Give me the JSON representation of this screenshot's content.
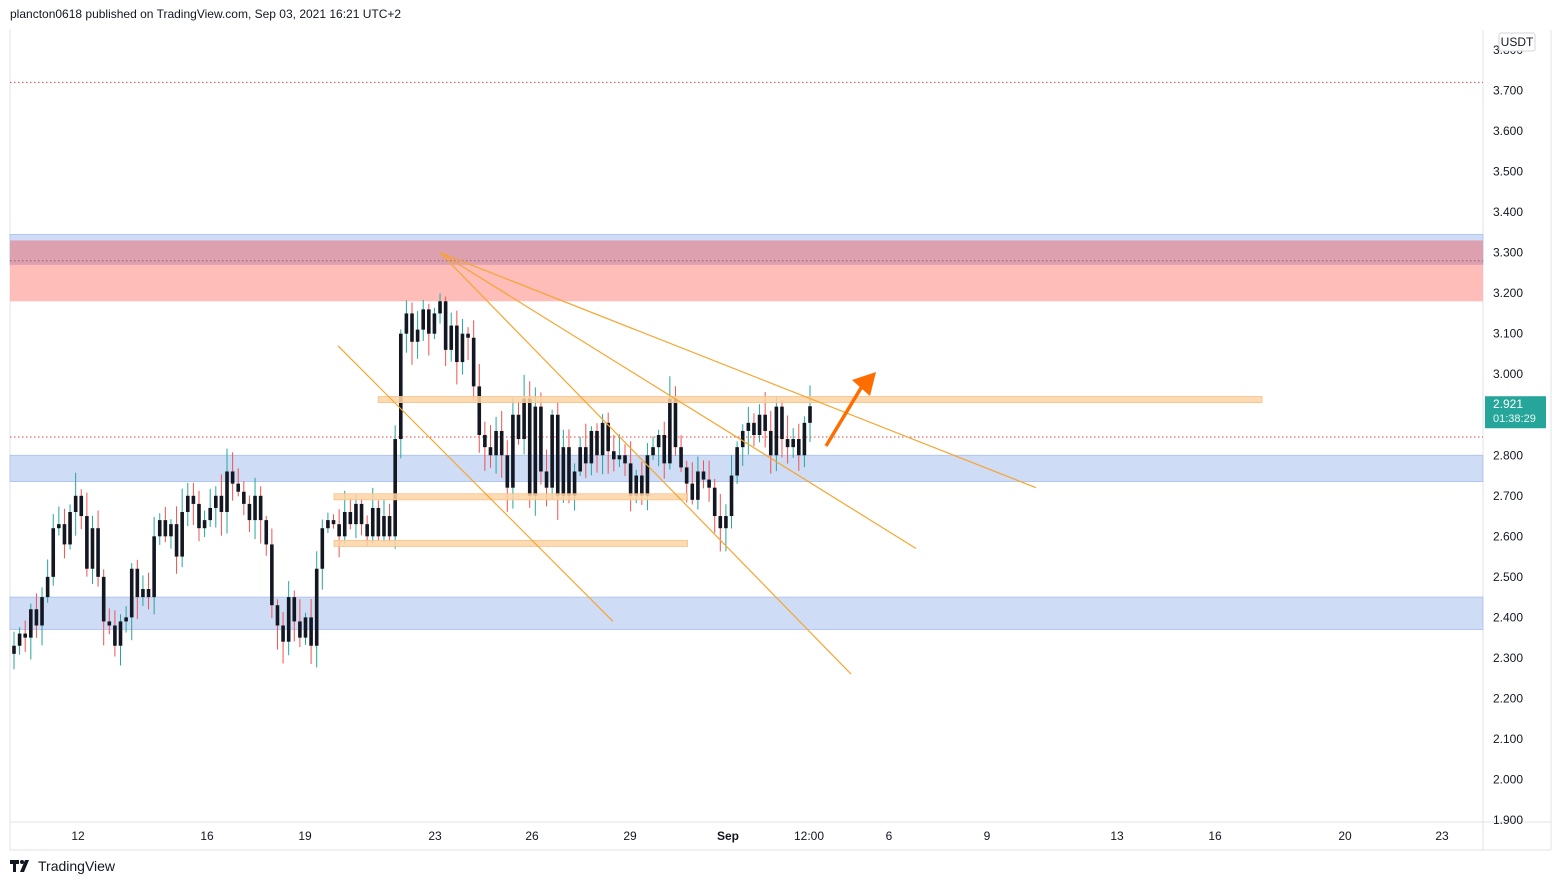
{
  "header": {
    "published_text": "plancton0618 published on TradingView.com, Sep 03, 2021 16:21 UTC+2"
  },
  "footer": {
    "brand": "TradingView"
  },
  "colors": {
    "up": "#26a69a",
    "down": "#ef5350",
    "wick": "#787b86",
    "body": "#131722",
    "support_zone": "#c5d6f5",
    "resistance_zone": "#ffb6b2",
    "orange_line": "#f7a531",
    "orange_zone": "#fbd3a5",
    "arrow": "#ff6d00",
    "price_label": "#26a69a"
  },
  "chart_data": {
    "type": "candlestick",
    "currency_label": "USDT",
    "last_price": "2.921",
    "countdown": "01:38:29",
    "y_ticks": [
      "3.800",
      "3.700",
      "3.600",
      "3.500",
      "3.400",
      "3.300",
      "3.200",
      "3.100",
      "3.000",
      "2.900",
      "2.800",
      "2.700",
      "2.600",
      "2.500",
      "2.400",
      "2.300",
      "2.200",
      "2.100",
      "2.000",
      "1.900"
    ],
    "ylim": [
      1.9,
      3.8
    ],
    "x_ticks": [
      {
        "label": "12",
        "bold": false
      },
      {
        "label": "16",
        "bold": false
      },
      {
        "label": "19",
        "bold": false
      },
      {
        "label": "23",
        "bold": false
      },
      {
        "label": "26",
        "bold": false
      },
      {
        "label": "29",
        "bold": false
      },
      {
        "label": "Sep",
        "bold": true
      },
      {
        "label": "12:00",
        "bold": false
      },
      {
        "label": "6",
        "bold": false
      },
      {
        "label": "9",
        "bold": false
      },
      {
        "label": "13",
        "bold": false
      },
      {
        "label": "16",
        "bold": false
      },
      {
        "label": "20",
        "bold": false
      },
      {
        "label": "23",
        "bold": false
      }
    ],
    "horizontal_levels": [
      3.72,
      2.845
    ],
    "zones": [
      {
        "kind": "resistance-blue",
        "from": 3.27,
        "to": 3.345
      },
      {
        "kind": "resistance-red",
        "from": 3.18,
        "to": 3.33
      },
      {
        "kind": "support-blue",
        "from": 2.735,
        "to": 2.8
      },
      {
        "kind": "support-blue",
        "from": 2.37,
        "to": 2.45
      }
    ],
    "closes": [
      2.33,
      2.36,
      2.35,
      2.42,
      2.38,
      2.45,
      2.5,
      2.62,
      2.63,
      2.58,
      2.66,
      2.7,
      2.65,
      2.52,
      2.62,
      2.5,
      2.39,
      2.38,
      2.33,
      2.39,
      2.4,
      2.52,
      2.45,
      2.47,
      2.45,
      2.6,
      2.64,
      2.6,
      2.63,
      2.55,
      2.66,
      2.7,
      2.68,
      2.62,
      2.64,
      2.67,
      2.7,
      2.66,
      2.76,
      2.73,
      2.71,
      2.68,
      2.64,
      2.7,
      2.64,
      2.58,
      2.43,
      2.38,
      2.34,
      2.45,
      2.39,
      2.35,
      2.4,
      2.33,
      2.52,
      2.62,
      2.64,
      2.63,
      2.6,
      2.66,
      2.63,
      2.68,
      2.63,
      2.6,
      2.67,
      2.6,
      2.65,
      2.6,
      2.84,
      3.1,
      3.15,
      3.08,
      3.11,
      3.16,
      3.1,
      3.15,
      3.18,
      3.06,
      3.12,
      3.03,
      3.1,
      3.09,
      2.97,
      2.85,
      2.82,
      2.8,
      2.86,
      2.8,
      2.72,
      2.9,
      2.84,
      2.94,
      2.7,
      2.92,
      2.76,
      2.72,
      2.9,
      2.7,
      2.82,
      2.7,
      2.76,
      2.82,
      2.78,
      2.86,
      2.8,
      2.88,
      2.81,
      2.79,
      2.8,
      2.78,
      2.7,
      2.75,
      2.7,
      2.8,
      2.82,
      2.85,
      2.78,
      2.94,
      2.82,
      2.77,
      2.73,
      2.69,
      2.76,
      2.74,
      2.72,
      2.65,
      2.62,
      2.65,
      2.75,
      2.82,
      2.86,
      2.88,
      2.85,
      2.9,
      2.86,
      2.8,
      2.92,
      2.84,
      2.82,
      2.84,
      2.8,
      2.88,
      2.921
    ],
    "trendlines": [
      {
        "from": [
          0,
          3.3
        ],
        "to": [
          1,
          2.72
        ]
      },
      {
        "from": [
          0,
          3.3
        ],
        "to": [
          1,
          2.57
        ]
      },
      {
        "from": [
          0,
          3.3
        ],
        "to": [
          1,
          2.26
        ]
      }
    ],
    "channel_line": {
      "from": [
        2.0,
        3.07
      ],
      "to": [
        2.6,
        2.39
      ]
    },
    "horizontal_bands": [
      {
        "from": 2.93,
        "to": 2.945,
        "range": [
          0.25,
          0.85
        ]
      },
      {
        "from": 2.69,
        "to": 2.705,
        "range": [
          0.22,
          0.46
        ]
      },
      {
        "from": 2.575,
        "to": 2.59,
        "range": [
          0.22,
          0.46
        ]
      }
    ]
  }
}
